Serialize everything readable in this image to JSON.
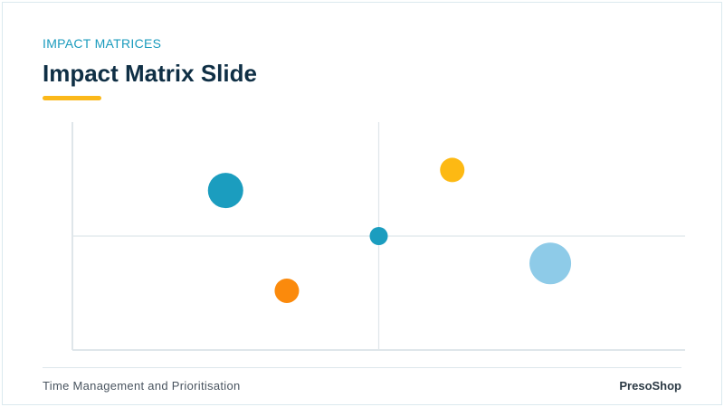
{
  "header": {
    "eyebrow": "IMPACT MATRICES",
    "title": "Impact Matrix Slide",
    "accent_color": "#fbb81a"
  },
  "chart_data": {
    "type": "scatter",
    "title": "",
    "xlabel": "",
    "ylabel": "",
    "xlim": [
      0,
      10
    ],
    "ylim": [
      0,
      10
    ],
    "grid": false,
    "quadrant_dividers": {
      "x": 5,
      "y": 5
    },
    "points": [
      {
        "x": 2.5,
        "y": 7.0,
        "size": 3,
        "color": "#1b9dbf"
      },
      {
        "x": 3.5,
        "y": 2.6,
        "size": 2,
        "color": "#fb8a0c"
      },
      {
        "x": 5.0,
        "y": 5.0,
        "size": 1,
        "color": "#1b9dbf"
      },
      {
        "x": 6.2,
        "y": 7.9,
        "size": 2,
        "color": "#fdb913"
      },
      {
        "x": 7.8,
        "y": 3.8,
        "size": 4,
        "color": "#8ecbe8"
      }
    ]
  },
  "footer": {
    "left": "Time Management and Prioritisation",
    "right": "PresoShop"
  }
}
